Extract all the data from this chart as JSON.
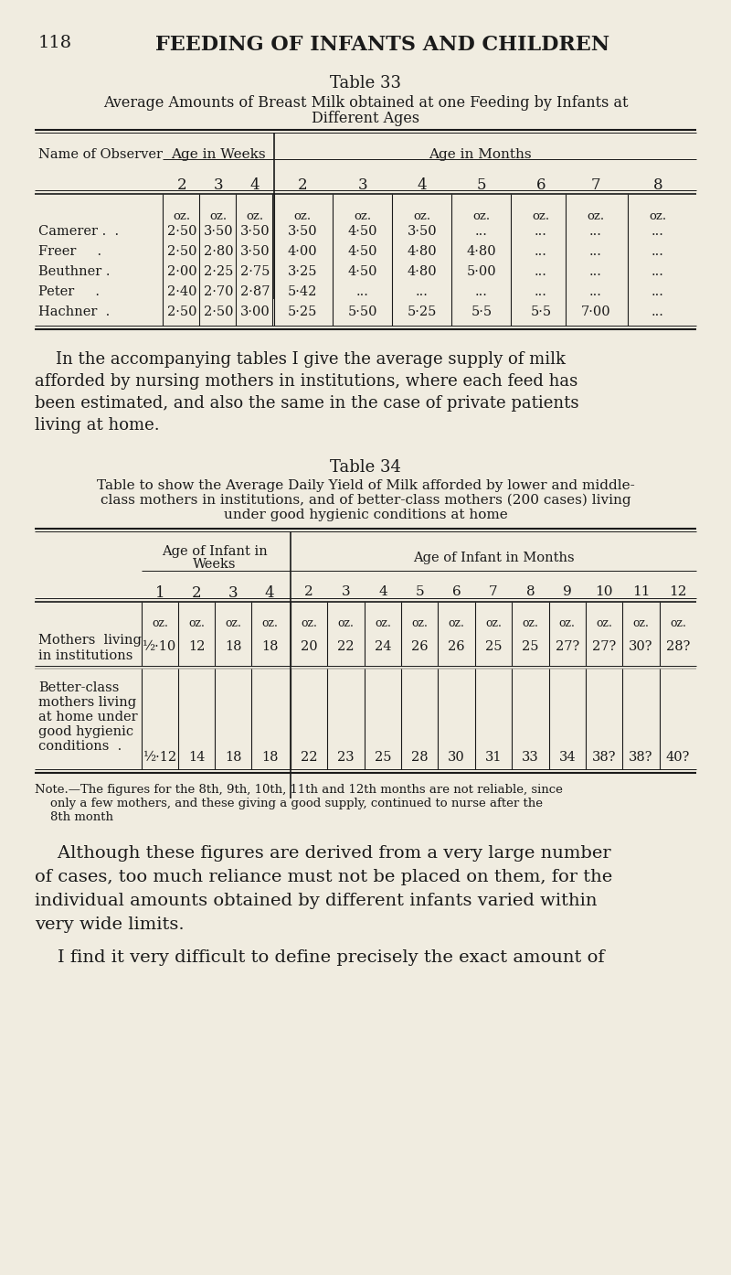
{
  "bg_color": "#f0ece0",
  "text_color": "#1a1a1a",
  "table33_rows": [
    [
      "Camerer .",
      "2·50",
      "3·50",
      "3·50",
      "3·50",
      "4·50",
      "3·50",
      "...",
      "...",
      "...",
      "..."
    ],
    [
      "Freer",
      "2·50",
      "2·80",
      "3·50",
      "4·00",
      "4·50",
      "4·80",
      "4·80",
      "...",
      "...",
      "..."
    ],
    [
      "Beuthner",
      "2·00",
      "2·25",
      "2·75",
      "3·25",
      "4·50",
      "4·80",
      "5·00",
      "...",
      "...",
      "..."
    ],
    [
      "Peter",
      "2·40",
      "2·70",
      "2·87",
      "5·42",
      "...",
      "...",
      "...",
      "...",
      "...",
      "..."
    ],
    [
      "Hachner",
      "2·50",
      "2·50",
      "3·00",
      "5·25",
      "5·50",
      "5·25",
      "5·5",
      "5·5",
      "7·00",
      "..."
    ]
  ],
  "table34_row1_data": [
    "½·10",
    "12",
    "18",
    "18",
    "20",
    "22",
    "24",
    "26",
    "26",
    "25",
    "25",
    "27?",
    "27?",
    "30?",
    "28?"
  ],
  "table34_row2_data": [
    "½·12",
    "14",
    "18",
    "18",
    "22",
    "23",
    "25",
    "28",
    "30",
    "31",
    "33",
    "34",
    "38?",
    "38?",
    "40?"
  ]
}
